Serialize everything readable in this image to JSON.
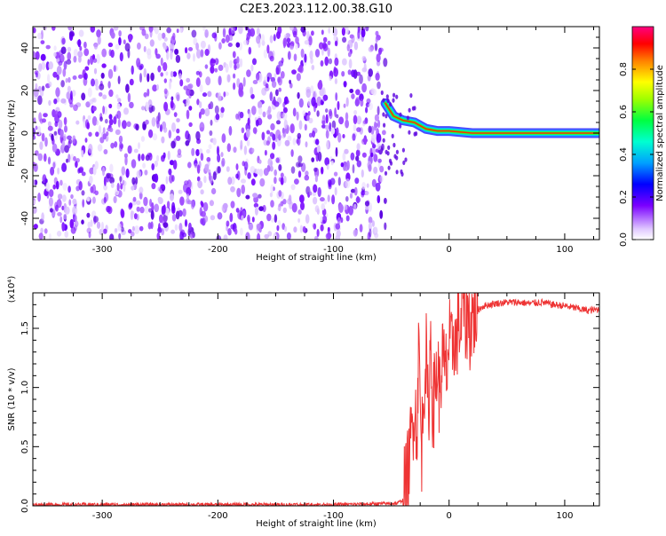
{
  "title": "C2E3.2023.112.00.38.G10",
  "chart_data": [
    {
      "type": "heatmap",
      "panel": "spectrogram",
      "xlabel": "Height of straight line (km)",
      "ylabel": "Frequency (Hz)",
      "xlim": [
        -360,
        130
      ],
      "ylim": [
        -50,
        50
      ],
      "x_ticks": [
        -300,
        -200,
        -100,
        0,
        100
      ],
      "x_tick_labels": [
        "-300",
        "-200",
        "-100",
        "0",
        "100"
      ],
      "y_ticks": [
        -40,
        -20,
        0,
        20,
        40
      ],
      "y_tick_labels": [
        "-40",
        "-20",
        "0",
        "20",
        "40"
      ],
      "noise_region_x": [
        -360,
        -55
      ],
      "signal_trace": [
        {
          "x": -55,
          "y": 14
        },
        {
          "x": -48,
          "y": 8
        },
        {
          "x": -40,
          "y": 6
        },
        {
          "x": -30,
          "y": 5
        },
        {
          "x": -20,
          "y": 2
        },
        {
          "x": -10,
          "y": 1
        },
        {
          "x": 0,
          "y": 1
        },
        {
          "x": 20,
          "y": 0
        },
        {
          "x": 60,
          "y": 0
        },
        {
          "x": 100,
          "y": 0
        },
        {
          "x": 130,
          "y": 0
        }
      ],
      "colorbar": {
        "label": "Normalized spectral amplitude",
        "range": [
          0,
          1
        ],
        "ticks": [
          0.0,
          0.2,
          0.4,
          0.6,
          0.8
        ],
        "tick_labels": [
          "0.0",
          "0.2",
          "0.4",
          "0.6",
          "0.8"
        ]
      },
      "grid": false
    },
    {
      "type": "line",
      "panel": "snr",
      "xlabel": "Height of straight line (km)",
      "ylabel": "SNR (10 * v/v)",
      "yscale_label": "(x10⁴)",
      "xlim": [
        -360,
        130
      ],
      "ylim": [
        0,
        1.8
      ],
      "x_ticks": [
        -300,
        -200,
        -100,
        0,
        100
      ],
      "x_tick_labels": [
        "-300",
        "-200",
        "-100",
        "0",
        "100"
      ],
      "y_ticks": [
        0.0,
        0.5,
        1.0,
        1.5
      ],
      "y_tick_labels": [
        "0.0",
        "0.5",
        "1.0",
        "1.5"
      ],
      "color": "#ee3333",
      "series": [
        {
          "x": [
            -360,
            -300,
            -200,
            -100,
            -45,
            -40,
            -35,
            -30,
            -28,
            -26,
            -24,
            -22,
            -20,
            -18,
            -16,
            -14,
            -12,
            -10,
            -8,
            -6,
            -4,
            -2,
            0,
            2,
            4,
            6,
            8,
            10,
            12,
            14,
            16,
            18,
            20,
            22,
            25,
            30,
            40,
            50,
            60,
            70,
            80,
            90,
            100,
            110,
            120,
            130
          ],
          "values": [
            0.01,
            0.01,
            0.01,
            0.01,
            0.02,
            0.05,
            0.3,
            0.9,
            0.6,
            1.4,
            0.4,
            1.0,
            1.3,
            0.7,
            1.45,
            0.8,
            1.0,
            1.2,
            0.9,
            1.3,
            1.1,
            1.15,
            1.4,
            1.25,
            1.5,
            1.3,
            1.6,
            1.45,
            1.8,
            1.55,
            1.65,
            1.5,
            1.6,
            1.62,
            1.66,
            1.69,
            1.71,
            1.72,
            1.72,
            1.71,
            1.72,
            1.7,
            1.69,
            1.67,
            1.65,
            1.66
          ]
        }
      ],
      "grid": false
    }
  ]
}
